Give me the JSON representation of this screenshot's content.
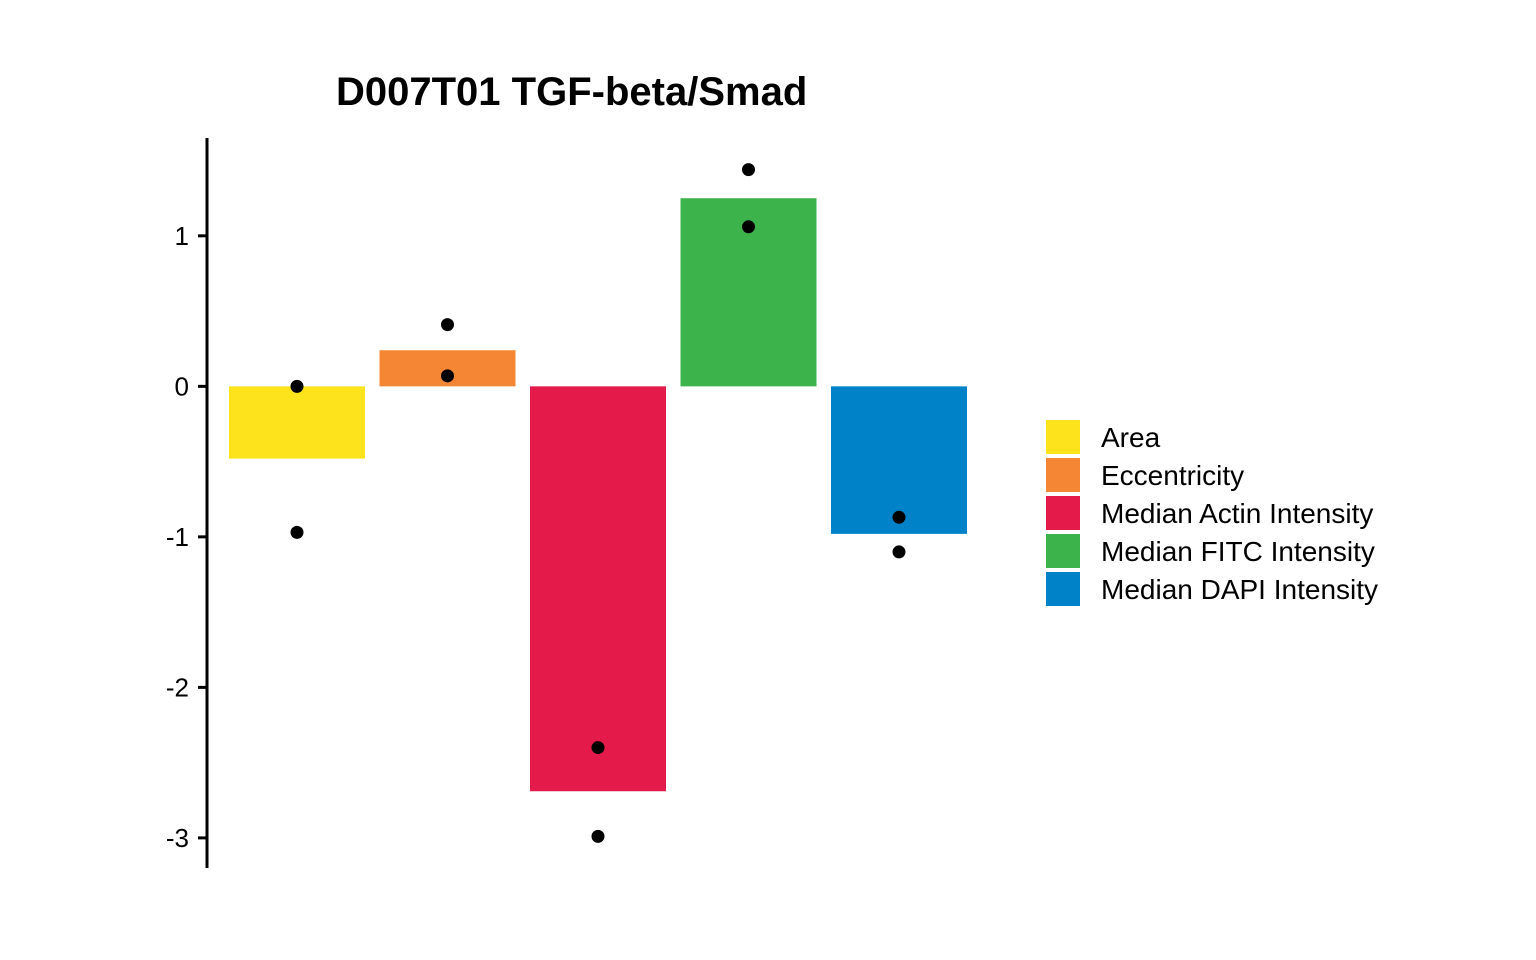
{
  "chart_data": {
    "type": "bar",
    "title": "D007T01 TGF-beta/Smad",
    "xlabel": "",
    "ylabel": "",
    "ylim": [
      -3.2,
      1.65
    ],
    "y_ticks": [
      1,
      0,
      -1,
      -2,
      -3
    ],
    "y_tick_labels": [
      "1",
      "0",
      "-1",
      "-2",
      "-3"
    ],
    "grid": false,
    "legend_position": "right",
    "categories": [
      "Area",
      "Eccentricity",
      "Median Actin Intensity",
      "Median FITC Intensity",
      "Median DAPI Intensity"
    ],
    "values": [
      -0.48,
      0.24,
      -2.69,
      1.25,
      -0.98
    ],
    "colors": [
      "#FDE31B",
      "#F58634",
      "#E31A4A",
      "#3CB44B",
      "#0082C8"
    ],
    "points": [
      [
        0.0,
        -0.97
      ],
      [
        0.41,
        0.07
      ],
      [
        -2.4,
        -2.99
      ],
      [
        1.44,
        1.06
      ],
      [
        -0.87,
        -1.1
      ]
    ],
    "legend": {
      "entries": [
        "Area",
        "Eccentricity",
        "Median Actin Intensity",
        "Median FITC Intensity",
        "Median DAPI Intensity"
      ]
    }
  }
}
